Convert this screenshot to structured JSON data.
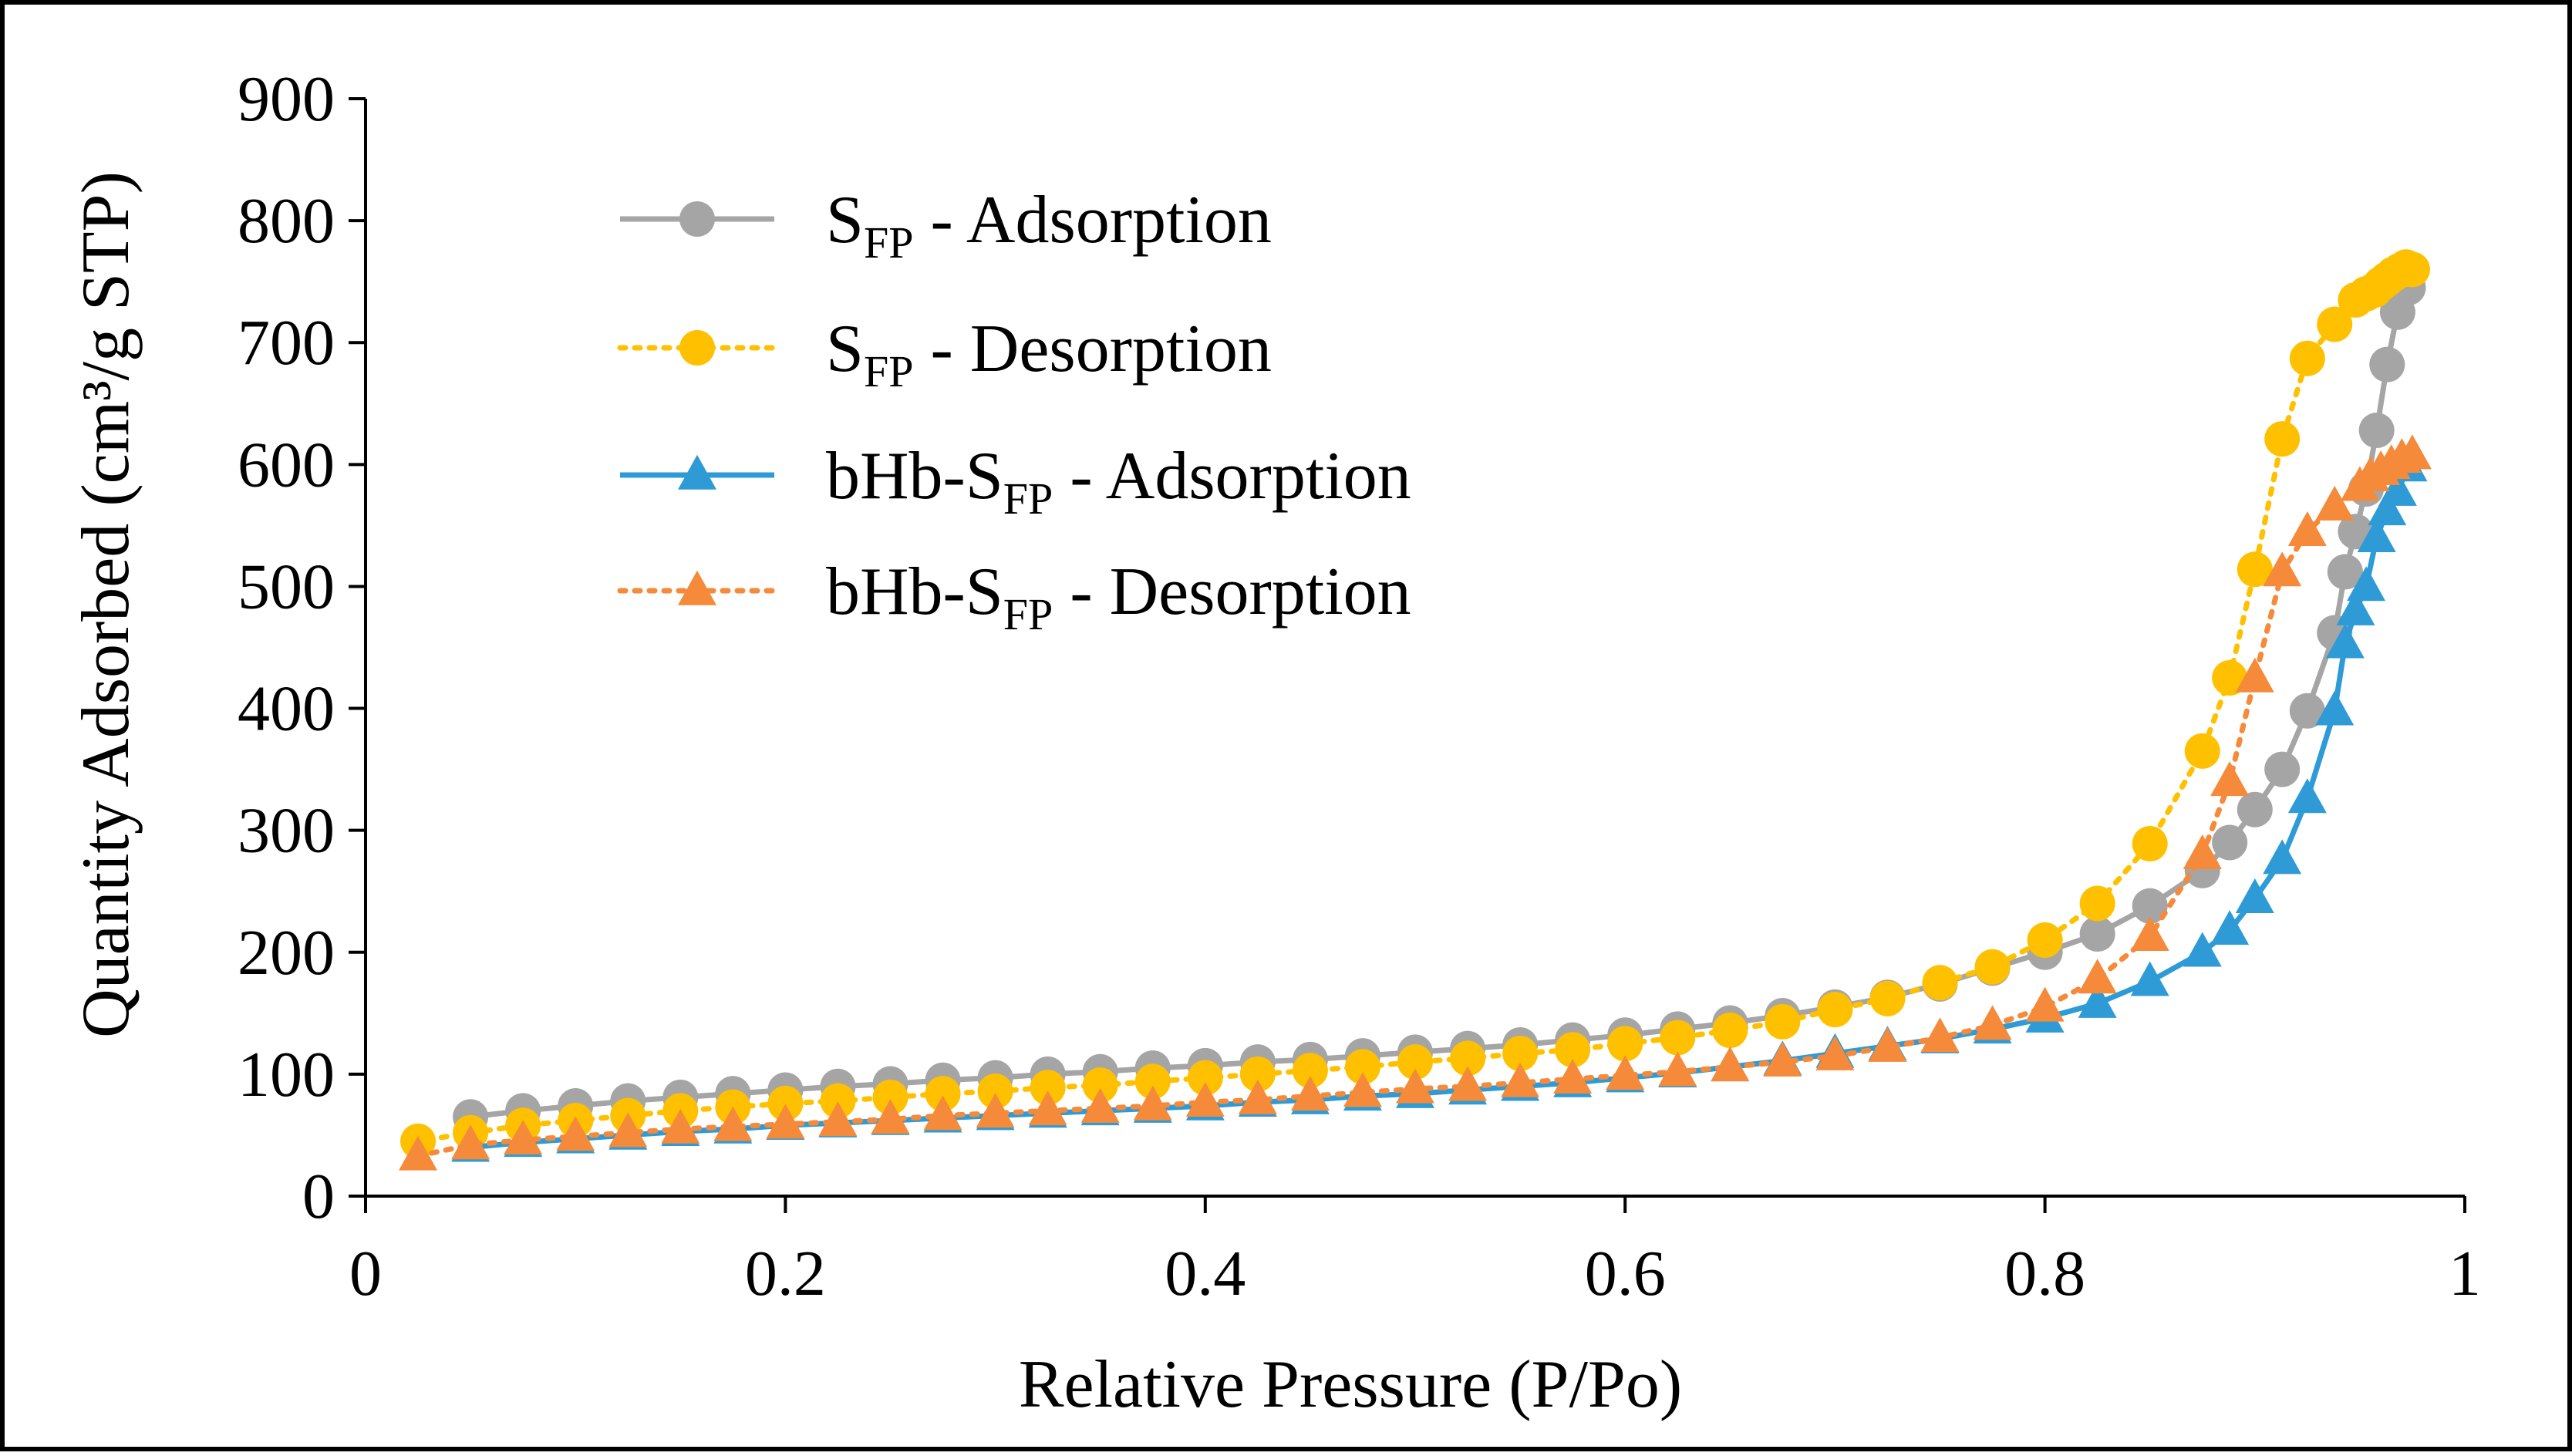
{
  "colors": {
    "s_adsorption": "#A5A5A5",
    "s_desorption": "#FFC000",
    "bhb_adsorption": "#2E9BD6",
    "bhb_desorption": "#F58A3A",
    "axis": "#000000"
  },
  "chart_data": {
    "type": "line",
    "title": "",
    "xlabel": "Relative Pressure (P/Po)",
    "ylabel": "Quantity Adsorbed (cm³/g STP)",
    "xlim": [
      0,
      1
    ],
    "ylim": [
      0,
      900
    ],
    "xticks": [
      0,
      0.2,
      0.4,
      0.6,
      0.8,
      1
    ],
    "xtick_labels": [
      "0",
      "0.2",
      "0.4",
      "0.6",
      "0.8",
      "1"
    ],
    "yticks": [
      0,
      100,
      200,
      300,
      400,
      500,
      600,
      700,
      800,
      900
    ],
    "ytick_labels": [
      "0",
      "100",
      "200",
      "300",
      "400",
      "500",
      "600",
      "700",
      "800",
      "900"
    ],
    "grid": false,
    "legend_position": "top-left",
    "series": [
      {
        "key": "s_ads",
        "name_main": "S",
        "name_sub": "FP",
        "name_suffix": " - Adsorption",
        "color": "#A5A5A5",
        "marker": "circle",
        "line_style": "solid",
        "x": [
          0.05,
          0.075,
          0.1,
          0.125,
          0.15,
          0.175,
          0.2,
          0.225,
          0.25,
          0.275,
          0.3,
          0.325,
          0.35,
          0.375,
          0.4,
          0.425,
          0.45,
          0.475,
          0.5,
          0.525,
          0.55,
          0.575,
          0.6,
          0.625,
          0.65,
          0.675,
          0.7,
          0.725,
          0.75,
          0.775,
          0.8,
          0.825,
          0.85,
          0.875,
          0.888,
          0.9,
          0.913,
          0.925,
          0.938,
          0.943,
          0.948,
          0.953,
          0.958,
          0.963,
          0.968,
          0.973
        ],
        "y": [
          65,
          70,
          74,
          78,
          81,
          84,
          87,
          90,
          92,
          95,
          97,
          100,
          102,
          105,
          107,
          110,
          112,
          115,
          118,
          121,
          124,
          128,
          132,
          137,
          142,
          148,
          155,
          163,
          174,
          187,
          200,
          215,
          238,
          267,
          290,
          317,
          350,
          398,
          462,
          512,
          545,
          580,
          628,
          682,
          725,
          745
        ]
      },
      {
        "key": "s_des",
        "name_main": "S",
        "name_sub": "FP",
        "name_suffix": " - Desorption",
        "color": "#FFC000",
        "marker": "circle",
        "line_style": "dotted",
        "x": [
          0.975,
          0.972,
          0.969,
          0.966,
          0.963,
          0.96,
          0.957,
          0.953,
          0.948,
          0.938,
          0.925,
          0.913,
          0.9,
          0.888,
          0.875,
          0.85,
          0.825,
          0.8,
          0.775,
          0.75,
          0.725,
          0.7,
          0.675,
          0.65,
          0.625,
          0.6,
          0.575,
          0.55,
          0.525,
          0.5,
          0.475,
          0.45,
          0.425,
          0.4,
          0.375,
          0.35,
          0.325,
          0.3,
          0.275,
          0.25,
          0.225,
          0.2,
          0.175,
          0.15,
          0.125,
          0.1,
          0.075,
          0.05,
          0.025
        ],
        "y": [
          760,
          762,
          759,
          756,
          752,
          748,
          743,
          740,
          735,
          715,
          687,
          621,
          514,
          425,
          365,
          289,
          240,
          210,
          188,
          175,
          162,
          153,
          143,
          136,
          130,
          125,
          120,
          117,
          113,
          110,
          106,
          103,
          100,
          97,
          94,
          91,
          89,
          86,
          84,
          81,
          78,
          76,
          73,
          70,
          66,
          62,
          58,
          52,
          45
        ]
      },
      {
        "key": "bhb_ads",
        "name_main": "bHb-S",
        "name_sub": "FP",
        "name_suffix": " - Adsorption",
        "color": "#2E9BD6",
        "marker": "triangle",
        "line_style": "solid",
        "x": [
          0.05,
          0.075,
          0.1,
          0.125,
          0.15,
          0.175,
          0.2,
          0.225,
          0.25,
          0.275,
          0.3,
          0.325,
          0.35,
          0.375,
          0.4,
          0.425,
          0.45,
          0.475,
          0.5,
          0.525,
          0.55,
          0.575,
          0.6,
          0.625,
          0.65,
          0.675,
          0.7,
          0.725,
          0.75,
          0.775,
          0.8,
          0.825,
          0.85,
          0.875,
          0.888,
          0.9,
          0.913,
          0.925,
          0.938,
          0.943,
          0.948,
          0.953,
          0.958,
          0.963,
          0.968,
          0.973
        ],
        "y": [
          40,
          44,
          47,
          50,
          53,
          55,
          58,
          60,
          62,
          64,
          66,
          68,
          70,
          72,
          74,
          77,
          79,
          82,
          84,
          87,
          90,
          93,
          97,
          101,
          106,
          111,
          117,
          123,
          129,
          137,
          146,
          158,
          176,
          200,
          218,
          244,
          276,
          326,
          398,
          453,
          480,
          500,
          540,
          562,
          578,
          598
        ]
      },
      {
        "key": "bhb_des",
        "name_main": "bHb-S",
        "name_sub": "FP",
        "name_suffix": " - Desorption",
        "color": "#F58A3A",
        "marker": "triangle",
        "line_style": "dotted",
        "x": [
          0.975,
          0.97,
          0.965,
          0.96,
          0.955,
          0.95,
          0.938,
          0.925,
          0.913,
          0.9,
          0.888,
          0.875,
          0.85,
          0.825,
          0.8,
          0.775,
          0.75,
          0.725,
          0.7,
          0.675,
          0.65,
          0.625,
          0.6,
          0.575,
          0.55,
          0.525,
          0.5,
          0.475,
          0.45,
          0.425,
          0.4,
          0.375,
          0.35,
          0.325,
          0.3,
          0.275,
          0.25,
          0.225,
          0.2,
          0.175,
          0.15,
          0.125,
          0.1,
          0.075,
          0.05,
          0.025
        ],
        "y": [
          608,
          605,
          600,
          595,
          590,
          582,
          566,
          545,
          512,
          425,
          340,
          280,
          213,
          178,
          155,
          140,
          130,
          122,
          115,
          110,
          106,
          102,
          99,
          96,
          93,
          90,
          88,
          85,
          82,
          79,
          77,
          74,
          72,
          70,
          68,
          66,
          63,
          61,
          59,
          57,
          55,
          52,
          49,
          46,
          42,
          33
        ]
      }
    ]
  }
}
